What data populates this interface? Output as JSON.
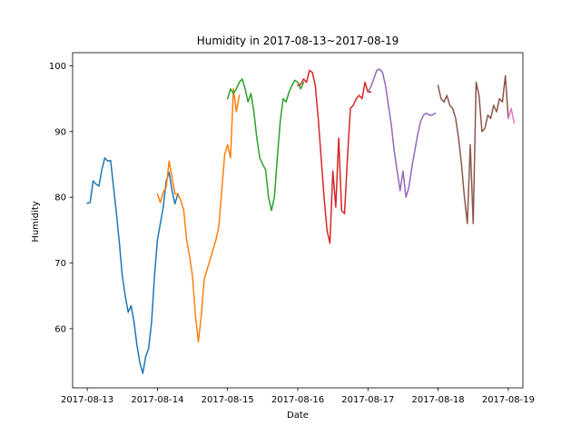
{
  "chart_data": {
    "type": "line",
    "title": "Humidity in 2017-08-13~2017-08-19",
    "xlabel": "Date",
    "ylabel": "Humidity",
    "x_type": "datetime",
    "xlim": [
      "2017-08-12T19:00",
      "2017-08-19T05:00"
    ],
    "ylim": [
      51,
      102
    ],
    "x_ticks": [
      "2017-08-13",
      "2017-08-14",
      "2017-08-15",
      "2017-08-16",
      "2017-08-17",
      "2017-08-18",
      "2017-08-19"
    ],
    "y_ticks": [
      60,
      70,
      80,
      90,
      100
    ],
    "grid": false,
    "legend": "none",
    "series": [
      {
        "color": "#1f77b4",
        "points": [
          [
            "2017-08-13T00:00",
            79.1
          ],
          [
            "2017-08-13T01:00",
            79.2
          ],
          [
            "2017-08-13T02:00",
            82.5
          ],
          [
            "2017-08-13T03:00",
            82.0
          ],
          [
            "2017-08-13T04:00",
            81.7
          ],
          [
            "2017-08-13T05:00",
            84.2
          ],
          [
            "2017-08-13T06:00",
            86.0
          ],
          [
            "2017-08-13T07:00",
            85.5
          ],
          [
            "2017-08-13T08:00",
            85.6
          ],
          [
            "2017-08-13T09:00",
            81.5
          ],
          [
            "2017-08-13T10:00",
            77.5
          ],
          [
            "2017-08-13T11:00",
            73.0
          ],
          [
            "2017-08-13T12:00",
            68.0
          ],
          [
            "2017-08-13T13:00",
            65.0
          ],
          [
            "2017-08-13T14:00",
            62.5
          ],
          [
            "2017-08-13T15:00",
            63.5
          ],
          [
            "2017-08-13T16:00",
            61.0
          ],
          [
            "2017-08-13T17:00",
            57.5
          ],
          [
            "2017-08-13T18:00",
            54.8
          ],
          [
            "2017-08-13T19:00",
            53.2
          ],
          [
            "2017-08-13T20:00",
            55.8
          ],
          [
            "2017-08-13T21:00",
            57.0
          ],
          [
            "2017-08-13T22:00",
            61.0
          ],
          [
            "2017-08-13T23:00",
            68.0
          ],
          [
            "2017-08-14T00:00",
            73.5
          ],
          [
            "2017-08-14T01:00",
            76.0
          ],
          [
            "2017-08-14T02:00",
            78.5
          ],
          [
            "2017-08-14T03:00",
            82.5
          ],
          [
            "2017-08-14T04:00",
            83.8
          ],
          [
            "2017-08-14T05:00",
            81.0
          ],
          [
            "2017-08-14T06:00",
            79.0
          ],
          [
            "2017-08-14T07:00",
            80.5
          ]
        ]
      },
      {
        "color": "#ff7f0e",
        "points": [
          [
            "2017-08-14T00:00",
            80.5
          ],
          [
            "2017-08-14T01:00",
            79.2
          ],
          [
            "2017-08-14T02:00",
            80.8
          ],
          [
            "2017-08-14T03:00",
            81.5
          ],
          [
            "2017-08-14T04:00",
            85.5
          ],
          [
            "2017-08-14T05:00",
            83.0
          ],
          [
            "2017-08-14T06:00",
            80.5
          ],
          [
            "2017-08-14T07:00",
            80.5
          ],
          [
            "2017-08-14T08:00",
            79.5
          ],
          [
            "2017-08-14T09:00",
            78.0
          ],
          [
            "2017-08-14T10:00",
            73.5
          ],
          [
            "2017-08-14T11:00",
            71.0
          ],
          [
            "2017-08-14T12:00",
            68.0
          ],
          [
            "2017-08-14T13:00",
            62.0
          ],
          [
            "2017-08-14T14:00",
            58.0
          ],
          [
            "2017-08-14T15:00",
            62.0
          ],
          [
            "2017-08-14T16:00",
            67.5
          ],
          [
            "2017-08-14T17:00",
            69.0
          ],
          [
            "2017-08-14T18:00",
            70.5
          ],
          [
            "2017-08-14T19:00",
            72.0
          ],
          [
            "2017-08-14T20:00",
            73.5
          ],
          [
            "2017-08-14T21:00",
            75.5
          ],
          [
            "2017-08-14T22:00",
            81.0
          ],
          [
            "2017-08-14T23:00",
            86.5
          ],
          [
            "2017-08-15T00:00",
            88.0
          ],
          [
            "2017-08-15T01:00",
            86.0
          ],
          [
            "2017-08-15T02:00",
            96.5
          ],
          [
            "2017-08-15T03:00",
            93.0
          ],
          [
            "2017-08-15T04:00",
            95.5
          ]
        ]
      },
      {
        "color": "#2ca02c",
        "points": [
          [
            "2017-08-15T00:00",
            95.0
          ],
          [
            "2017-08-15T01:00",
            96.5
          ],
          [
            "2017-08-15T02:00",
            95.8
          ],
          [
            "2017-08-15T03:00",
            96.5
          ],
          [
            "2017-08-15T04:00",
            97.5
          ],
          [
            "2017-08-15T05:00",
            98.0
          ],
          [
            "2017-08-15T06:00",
            96.5
          ],
          [
            "2017-08-15T07:00",
            94.5
          ],
          [
            "2017-08-15T08:00",
            95.8
          ],
          [
            "2017-08-15T09:00",
            93.0
          ],
          [
            "2017-08-15T10:00",
            89.0
          ],
          [
            "2017-08-15T11:00",
            86.0
          ],
          [
            "2017-08-15T12:00",
            85.0
          ],
          [
            "2017-08-15T13:00",
            84.2
          ],
          [
            "2017-08-15T14:00",
            80.0
          ],
          [
            "2017-08-15T15:00",
            78.0
          ],
          [
            "2017-08-15T16:00",
            80.0
          ],
          [
            "2017-08-15T17:00",
            86.0
          ],
          [
            "2017-08-15T18:00",
            91.5
          ],
          [
            "2017-08-15T19:00",
            95.0
          ],
          [
            "2017-08-15T20:00",
            94.5
          ],
          [
            "2017-08-15T21:00",
            96.0
          ],
          [
            "2017-08-15T22:00",
            97.0
          ],
          [
            "2017-08-15T23:00",
            97.8
          ],
          [
            "2017-08-16T00:00",
            97.5
          ],
          [
            "2017-08-16T01:00",
            96.5
          ],
          [
            "2017-08-16T02:00",
            97.5
          ]
        ]
      },
      {
        "color": "#d62728",
        "points": [
          [
            "2017-08-16T00:00",
            97.0
          ],
          [
            "2017-08-16T01:00",
            97.2
          ],
          [
            "2017-08-16T02:00",
            98.0
          ],
          [
            "2017-08-16T03:00",
            97.5
          ],
          [
            "2017-08-16T04:00",
            99.3
          ],
          [
            "2017-08-16T05:00",
            99.0
          ],
          [
            "2017-08-16T06:00",
            97.0
          ],
          [
            "2017-08-16T07:00",
            92.0
          ],
          [
            "2017-08-16T08:00",
            86.0
          ],
          [
            "2017-08-16T09:00",
            80.0
          ],
          [
            "2017-08-16T10:00",
            75.0
          ],
          [
            "2017-08-16T11:00",
            73.0
          ],
          [
            "2017-08-16T12:00",
            84.0
          ],
          [
            "2017-08-16T13:00",
            78.5
          ],
          [
            "2017-08-16T14:00",
            89.0
          ],
          [
            "2017-08-16T15:00",
            78.0
          ],
          [
            "2017-08-16T16:00",
            77.5
          ],
          [
            "2017-08-16T17:00",
            86.0
          ],
          [
            "2017-08-16T18:00",
            93.5
          ],
          [
            "2017-08-16T19:00",
            94.0
          ],
          [
            "2017-08-16T20:00",
            95.0
          ],
          [
            "2017-08-16T21:00",
            95.5
          ],
          [
            "2017-08-16T22:00",
            95.0
          ],
          [
            "2017-08-16T23:00",
            97.5
          ],
          [
            "2017-08-17T00:00",
            96.0
          ],
          [
            "2017-08-17T01:00",
            96.0
          ]
        ]
      },
      {
        "color": "#9467bd",
        "points": [
          [
            "2017-08-17T00:00",
            96.0
          ],
          [
            "2017-08-17T01:00",
            96.8
          ],
          [
            "2017-08-17T02:00",
            98.0
          ],
          [
            "2017-08-17T03:00",
            99.3
          ],
          [
            "2017-08-17T04:00",
            99.5
          ],
          [
            "2017-08-17T05:00",
            99.0
          ],
          [
            "2017-08-17T06:00",
            97.0
          ],
          [
            "2017-08-17T07:00",
            94.0
          ],
          [
            "2017-08-17T08:00",
            91.0
          ],
          [
            "2017-08-17T09:00",
            87.0
          ],
          [
            "2017-08-17T10:00",
            84.0
          ],
          [
            "2017-08-17T11:00",
            81.0
          ],
          [
            "2017-08-17T12:00",
            84.0
          ],
          [
            "2017-08-17T13:00",
            80.0
          ],
          [
            "2017-08-17T14:00",
            81.5
          ],
          [
            "2017-08-17T15:00",
            84.5
          ],
          [
            "2017-08-17T16:00",
            87.0
          ],
          [
            "2017-08-17T17:00",
            89.5
          ],
          [
            "2017-08-17T18:00",
            91.5
          ],
          [
            "2017-08-17T19:00",
            92.5
          ],
          [
            "2017-08-17T20:00",
            92.8
          ],
          [
            "2017-08-17T21:00",
            92.5
          ],
          [
            "2017-08-17T22:00",
            92.5
          ],
          [
            "2017-08-17T23:00",
            92.8
          ]
        ]
      },
      {
        "color": "#8c564b",
        "points": [
          [
            "2017-08-18T00:00",
            97.0
          ],
          [
            "2017-08-18T01:00",
            95.0
          ],
          [
            "2017-08-18T02:00",
            94.5
          ],
          [
            "2017-08-18T03:00",
            95.5
          ],
          [
            "2017-08-18T04:00",
            94.0
          ],
          [
            "2017-08-18T05:00",
            93.5
          ],
          [
            "2017-08-18T06:00",
            92.0
          ],
          [
            "2017-08-18T07:00",
            89.0
          ],
          [
            "2017-08-18T08:00",
            85.0
          ],
          [
            "2017-08-18T09:00",
            80.0
          ],
          [
            "2017-08-18T10:00",
            76.0
          ],
          [
            "2017-08-18T11:00",
            88.0
          ],
          [
            "2017-08-18T12:00",
            76.0
          ],
          [
            "2017-08-18T13:00",
            97.5
          ],
          [
            "2017-08-18T14:00",
            95.5
          ],
          [
            "2017-08-18T15:00",
            90.0
          ],
          [
            "2017-08-18T16:00",
            90.5
          ],
          [
            "2017-08-18T17:00",
            92.5
          ],
          [
            "2017-08-18T18:00",
            92.0
          ],
          [
            "2017-08-18T19:00",
            94.0
          ],
          [
            "2017-08-18T20:00",
            93.0
          ],
          [
            "2017-08-18T21:00",
            95.0
          ],
          [
            "2017-08-18T22:00",
            94.5
          ],
          [
            "2017-08-18T23:00",
            98.5
          ],
          [
            "2017-08-19T00:00",
            92.0
          ]
        ]
      },
      {
        "color": "#e377c2",
        "points": [
          [
            "2017-08-19T00:00",
            92.0
          ],
          [
            "2017-08-19T01:00",
            93.5
          ],
          [
            "2017-08-19T02:00",
            91.3
          ]
        ]
      }
    ]
  }
}
